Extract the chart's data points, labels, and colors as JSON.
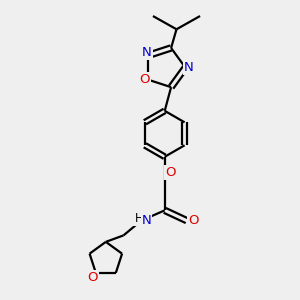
{
  "bg_color": "#efefef",
  "bond_color": "#000000",
  "N_color": "#0000cc",
  "O_color": "#dd0000",
  "line_width": 1.6,
  "font_size": 8.5,
  "fig_size": [
    3.0,
    3.0
  ],
  "dpi": 100,
  "xlim": [
    0,
    10
  ],
  "ylim": [
    0,
    10
  ]
}
